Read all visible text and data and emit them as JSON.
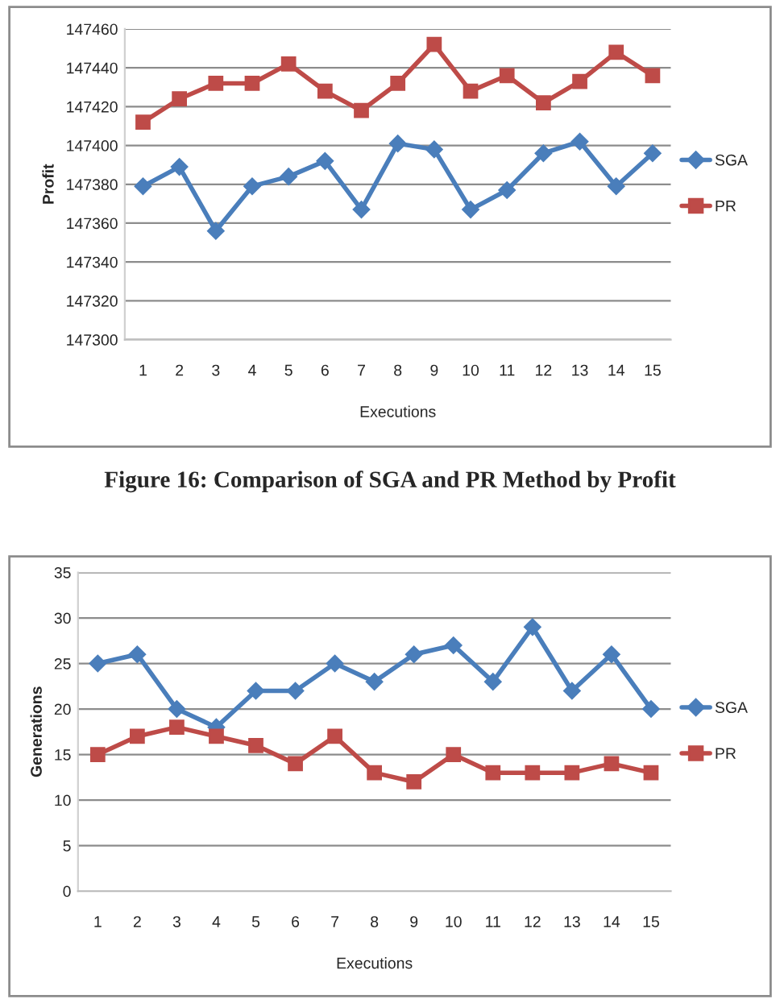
{
  "chart_data": [
    {
      "type": "line",
      "xlabel": "Executions",
      "ylabel": "Profit",
      "categories": [
        "1",
        "2",
        "3",
        "4",
        "5",
        "6",
        "7",
        "8",
        "9",
        "10",
        "11",
        "12",
        "13",
        "14",
        "15"
      ],
      "series": [
        {
          "name": "SGA",
          "color": "#4a7ebb",
          "marker": "diamond",
          "values": [
            147379,
            147389,
            147356,
            147379,
            147384,
            147392,
            147367,
            147401,
            147398,
            147367,
            147377,
            147396,
            147402,
            147379,
            147396
          ]
        },
        {
          "name": "PR",
          "color": "#be4b48",
          "marker": "square",
          "values": [
            147412,
            147424,
            147432,
            147432,
            147442,
            147428,
            147418,
            147432,
            147452,
            147428,
            147436,
            147422,
            147433,
            147448,
            147436
          ]
        }
      ],
      "ylim": [
        147300,
        147460
      ],
      "yticks": [
        147300,
        147320,
        147340,
        147360,
        147380,
        147400,
        147420,
        147440,
        147460
      ],
      "grid": "y",
      "legend": "right",
      "annotations": [
        "Figure 16: Comparison of SGA and PR Method by Profit"
      ]
    },
    {
      "type": "line",
      "xlabel": "Executions",
      "ylabel": "Generations",
      "categories": [
        "1",
        "2",
        "3",
        "4",
        "5",
        "6",
        "7",
        "8",
        "9",
        "10",
        "11",
        "12",
        "13",
        "14",
        "15"
      ],
      "series": [
        {
          "name": "SGA",
          "color": "#4a7ebb",
          "marker": "diamond",
          "values": [
            25,
            26,
            20,
            18,
            22,
            22,
            25,
            23,
            26,
            27,
            23,
            29,
            22,
            26,
            20
          ]
        },
        {
          "name": "PR",
          "color": "#be4b48",
          "marker": "square",
          "values": [
            15,
            17,
            18,
            17,
            16,
            14,
            17,
            13,
            12,
            15,
            13,
            13,
            13,
            14,
            13
          ]
        }
      ],
      "ylim": [
        0,
        35
      ],
      "yticks": [
        0,
        5,
        10,
        15,
        20,
        25,
        30,
        35
      ],
      "grid": "y",
      "legend": "right"
    }
  ]
}
